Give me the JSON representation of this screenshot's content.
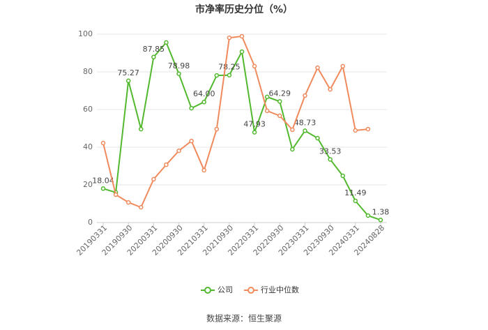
{
  "chart_data": {
    "type": "line",
    "title": "市净率历史分位（%）",
    "source": "数据来源：恒生聚源",
    "categories": [
      "20190331",
      null,
      "20190930",
      null,
      "20200331",
      null,
      "20200930",
      null,
      "20210331",
      null,
      "20210930",
      null,
      "20220331",
      null,
      "20220930",
      null,
      "20230331",
      null,
      "20230930",
      null,
      "20240331",
      null,
      "20240828"
    ],
    "series": [
      {
        "name": "公司",
        "color": "#52b82e",
        "values": [
          18.04,
          16,
          75.27,
          49.6,
          87.85,
          95.6,
          78.98,
          60.7,
          64.0,
          78.1,
          78.25,
          90.7,
          47.93,
          66.7,
          64.29,
          38.9,
          48.73,
          44.8,
          33.53,
          24.8,
          11.49,
          3.7,
          1.38
        ],
        "value_labels": [
          "18.04",
          null,
          "75.27",
          null,
          "87.85",
          null,
          "78.98",
          null,
          "64.00",
          null,
          "78.25",
          null,
          "47.93",
          null,
          "64.29",
          null,
          "48.73",
          null,
          "33.53",
          null,
          "11.49",
          null,
          "1.38"
        ]
      },
      {
        "name": "行业中位数",
        "color": "#f08a5d",
        "values": [
          42.2,
          14.8,
          10.7,
          8.1,
          23,
          30.7,
          38.1,
          43.3,
          27.8,
          49.6,
          98.1,
          98.9,
          83,
          59.3,
          56.7,
          49.3,
          67.4,
          82.2,
          70.7,
          83,
          48.9,
          49.6,
          null
        ]
      }
    ],
    "ylim": [
      0,
      100
    ],
    "yticks": [
      0,
      20,
      40,
      60,
      80,
      100
    ],
    "grid": true,
    "legend": "bottom"
  }
}
